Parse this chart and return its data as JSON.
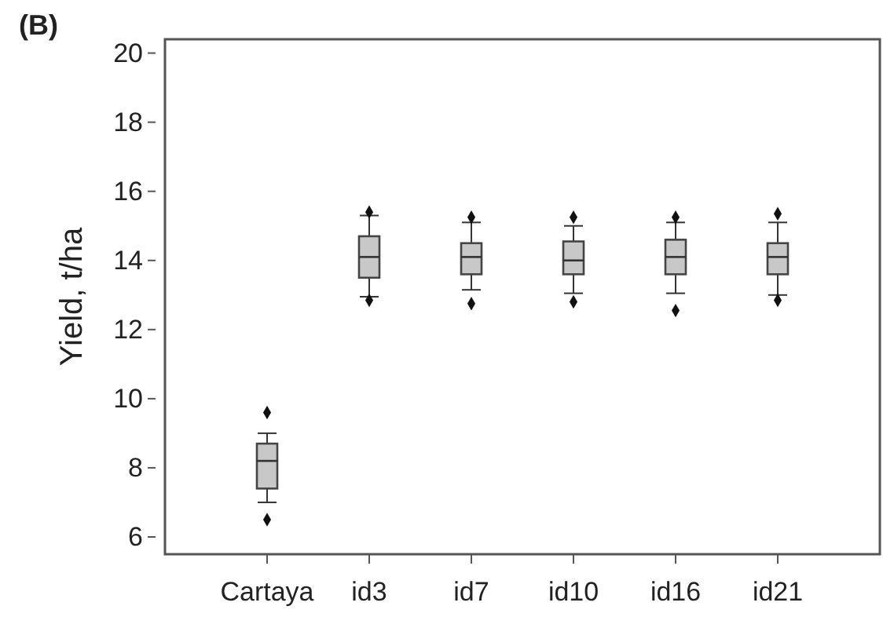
{
  "chart_data": {
    "type": "box",
    "title": "(B)",
    "ylabel": "Yield, t/ha",
    "categories": [
      "Cartaya",
      "id3",
      "id7",
      "id10",
      "id16",
      "id21"
    ],
    "color": "#c8c8c8",
    "boxes": [
      {
        "low": 7.0,
        "q1": 7.4,
        "median": 8.2,
        "q3": 8.7,
        "high": 9.0,
        "outliers": [
          9.6,
          6.5
        ]
      },
      {
        "low": 12.95,
        "q1": 13.5,
        "median": 14.1,
        "q3": 14.7,
        "high": 15.3,
        "outliers": [
          15.4,
          12.85
        ]
      },
      {
        "low": 13.15,
        "q1": 13.6,
        "median": 14.1,
        "q3": 14.5,
        "high": 15.1,
        "outliers": [
          15.25,
          12.75
        ]
      },
      {
        "low": 13.05,
        "q1": 13.6,
        "median": 14.0,
        "q3": 14.55,
        "high": 15.0,
        "outliers": [
          15.25,
          12.8
        ]
      },
      {
        "low": 13.05,
        "q1": 13.6,
        "median": 14.1,
        "q3": 14.6,
        "high": 15.1,
        "outliers": [
          15.25,
          12.55
        ]
      },
      {
        "low": 13.0,
        "q1": 13.6,
        "median": 14.1,
        "q3": 14.5,
        "high": 15.1,
        "outliers": [
          15.35,
          12.85
        ]
      }
    ],
    "ylim": [
      5.5,
      20.4
    ],
    "yticks": [
      6,
      8,
      10,
      12,
      14,
      16,
      18,
      20
    ],
    "grid": false
  }
}
